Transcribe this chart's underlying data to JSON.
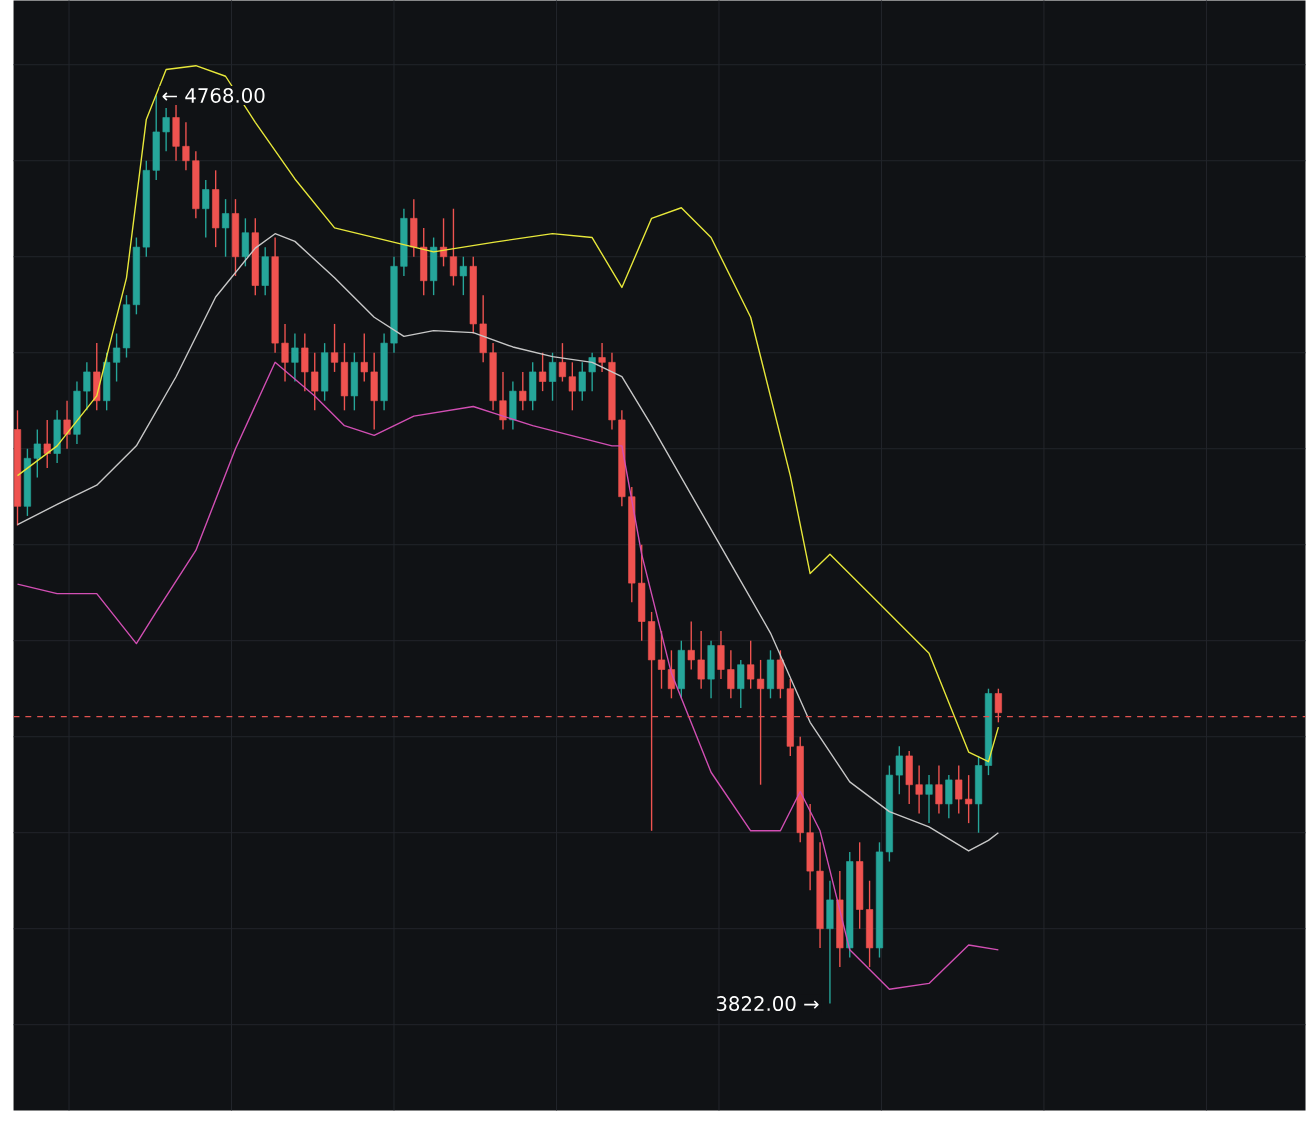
{
  "chart_data": {
    "type": "candlestick",
    "categories": [
      null,
      null,
      null,
      null,
      null,
      null,
      null,
      null,
      null,
      null,
      null,
      null,
      null,
      null,
      null,
      null,
      null,
      null,
      null,
      null,
      null,
      null,
      null,
      null,
      null,
      null,
      null,
      null,
      null,
      null,
      null,
      null,
      null,
      null,
      null,
      null,
      null,
      null,
      null,
      null,
      null,
      null,
      null,
      null,
      null,
      null,
      null,
      null,
      null,
      null,
      null,
      null,
      null,
      null,
      null,
      null,
      null,
      null,
      null,
      null,
      null,
      null,
      null,
      null,
      null,
      null,
      null,
      null,
      null,
      null,
      null,
      null,
      null,
      null,
      null,
      null,
      null,
      null,
      null,
      null,
      null,
      null,
      null,
      null,
      null,
      null,
      null,
      null,
      null,
      null,
      null,
      null,
      null,
      null,
      null,
      null,
      null,
      null,
      null,
      null
    ],
    "ohlc": [
      [
        4420,
        4440,
        4320,
        4340
      ],
      [
        4340,
        4400,
        4330,
        4390
      ],
      [
        4390,
        4420,
        4370,
        4405
      ],
      [
        4405,
        4430,
        4380,
        4395
      ],
      [
        4395,
        4440,
        4385,
        4430
      ],
      [
        4430,
        4450,
        4400,
        4415
      ],
      [
        4415,
        4470,
        4405,
        4460
      ],
      [
        4460,
        4490,
        4440,
        4480
      ],
      [
        4480,
        4510,
        4440,
        4450
      ],
      [
        4450,
        4500,
        4440,
        4490
      ],
      [
        4490,
        4520,
        4470,
        4505
      ],
      [
        4505,
        4560,
        4495,
        4550
      ],
      [
        4550,
        4620,
        4540,
        4610
      ],
      [
        4610,
        4700,
        4600,
        4690
      ],
      [
        4690,
        4768,
        4680,
        4730
      ],
      [
        4730,
        4755,
        4710,
        4745
      ],
      [
        4745,
        4760,
        4700,
        4715
      ],
      [
        4715,
        4740,
        4690,
        4700
      ],
      [
        4700,
        4710,
        4640,
        4650
      ],
      [
        4650,
        4680,
        4620,
        4670
      ],
      [
        4670,
        4690,
        4610,
        4630
      ],
      [
        4630,
        4660,
        4600,
        4645
      ],
      [
        4645,
        4660,
        4580,
        4600
      ],
      [
        4600,
        4640,
        4590,
        4625
      ],
      [
        4625,
        4640,
        4560,
        4570
      ],
      [
        4570,
        4610,
        4560,
        4600
      ],
      [
        4600,
        4620,
        4500,
        4510
      ],
      [
        4510,
        4530,
        4470,
        4490
      ],
      [
        4490,
        4520,
        4470,
        4505
      ],
      [
        4505,
        4520,
        4460,
        4480
      ],
      [
        4480,
        4500,
        4440,
        4460
      ],
      [
        4460,
        4510,
        4450,
        4500
      ],
      [
        4500,
        4530,
        4480,
        4490
      ],
      [
        4490,
        4510,
        4440,
        4455
      ],
      [
        4455,
        4500,
        4440,
        4490
      ],
      [
        4490,
        4520,
        4470,
        4480
      ],
      [
        4480,
        4500,
        4420,
        4450
      ],
      [
        4450,
        4520,
        4440,
        4510
      ],
      [
        4510,
        4600,
        4500,
        4590
      ],
      [
        4590,
        4650,
        4580,
        4640
      ],
      [
        4640,
        4660,
        4600,
        4610
      ],
      [
        4610,
        4630,
        4560,
        4575
      ],
      [
        4575,
        4620,
        4560,
        4610
      ],
      [
        4610,
        4640,
        4590,
        4600
      ],
      [
        4600,
        4650,
        4570,
        4580
      ],
      [
        4580,
        4600,
        4560,
        4590
      ],
      [
        4590,
        4600,
        4520,
        4530
      ],
      [
        4530,
        4560,
        4490,
        4500
      ],
      [
        4500,
        4510,
        4440,
        4450
      ],
      [
        4450,
        4480,
        4420,
        4430
      ],
      [
        4430,
        4470,
        4420,
        4460
      ],
      [
        4460,
        4480,
        4440,
        4450
      ],
      [
        4450,
        4490,
        4440,
        4480
      ],
      [
        4480,
        4500,
        4460,
        4470
      ],
      [
        4470,
        4500,
        4450,
        4490
      ],
      [
        4490,
        4510,
        4470,
        4475
      ],
      [
        4475,
        4490,
        4440,
        4460
      ],
      [
        4460,
        4490,
        4450,
        4480
      ],
      [
        4480,
        4500,
        4460,
        4495
      ],
      [
        4495,
        4510,
        4480,
        4490
      ],
      [
        4490,
        4500,
        4420,
        4430
      ],
      [
        4430,
        4440,
        4340,
        4350
      ],
      [
        4350,
        4360,
        4240,
        4260
      ],
      [
        4260,
        4300,
        4200,
        4220
      ],
      [
        4220,
        4230,
        4002,
        4180
      ],
      [
        4180,
        4210,
        4150,
        4170
      ],
      [
        4170,
        4190,
        4140,
        4150
      ],
      [
        4150,
        4200,
        4140,
        4190
      ],
      [
        4190,
        4220,
        4170,
        4180
      ],
      [
        4180,
        4210,
        4150,
        4160
      ],
      [
        4160,
        4200,
        4140,
        4195
      ],
      [
        4195,
        4210,
        4160,
        4170
      ],
      [
        4170,
        4190,
        4140,
        4150
      ],
      [
        4150,
        4180,
        4130,
        4175
      ],
      [
        4175,
        4200,
        4150,
        4160
      ],
      [
        4160,
        4180,
        4050,
        4150
      ],
      [
        4150,
        4190,
        4140,
        4180
      ],
      [
        4180,
        4190,
        4140,
        4150
      ],
      [
        4150,
        4160,
        4080,
        4090
      ],
      [
        4090,
        4100,
        3990,
        4000
      ],
      [
        4000,
        4030,
        3940,
        3960
      ],
      [
        3960,
        3990,
        3880,
        3900
      ],
      [
        3900,
        3950,
        3822,
        3930
      ],
      [
        3930,
        3960,
        3860,
        3880
      ],
      [
        3880,
        3980,
        3870,
        3970
      ],
      [
        3970,
        3990,
        3900,
        3920
      ],
      [
        3920,
        3950,
        3860,
        3880
      ],
      [
        3880,
        3990,
        3870,
        3980
      ],
      [
        3980,
        4070,
        3970,
        4060
      ],
      [
        4060,
        4090,
        4040,
        4080
      ],
      [
        4080,
        4085,
        4030,
        4050
      ],
      [
        4050,
        4070,
        4020,
        4040
      ],
      [
        4040,
        4060,
        4010,
        4050
      ],
      [
        4050,
        4070,
        4020,
        4030
      ],
      [
        4030,
        4060,
        4015,
        4055
      ],
      [
        4055,
        4070,
        4020,
        4035
      ],
      [
        4035,
        4060,
        4010,
        4030
      ],
      [
        4030,
        4080,
        4000,
        4070
      ],
      [
        4070,
        4150,
        4060,
        4145
      ],
      [
        4145,
        4150,
        4115,
        4125
      ]
    ],
    "colors": [
      "#ef5350",
      "#26a69a",
      "#26a69a",
      "#ef5350",
      "#26a69a",
      "#ef5350",
      "#26a69a",
      "#26a69a",
      "#ef5350",
      "#26a69a",
      "#26a69a",
      "#26a69a",
      "#26a69a",
      "#26a69a",
      "#26a69a",
      "#26a69a",
      "#ef5350",
      "#ef5350",
      "#ef5350",
      "#26a69a",
      "#ef5350",
      "#26a69a",
      "#ef5350",
      "#26a69a",
      "#ef5350",
      "#26a69a",
      "#ef5350",
      "#ef5350",
      "#26a69a",
      "#ef5350",
      "#ef5350",
      "#26a69a",
      "#ef5350",
      "#ef5350",
      "#26a69a",
      "#ef5350",
      "#ef5350",
      "#26a69a",
      "#26a69a",
      "#26a69a",
      "#ef5350",
      "#ef5350",
      "#26a69a",
      "#ef5350",
      "#ef5350",
      "#26a69a",
      "#ef5350",
      "#ef5350",
      "#ef5350",
      "#ef5350",
      "#26a69a",
      "#ef5350",
      "#26a69a",
      "#ef5350",
      "#26a69a",
      "#ef5350",
      "#ef5350",
      "#26a69a",
      "#26a69a",
      "#ef5350",
      "#ef5350",
      "#ef5350",
      "#ef5350",
      "#ef5350",
      "#ef5350",
      "#ef5350",
      "#ef5350",
      "#26a69a",
      "#ef5350",
      "#ef5350",
      "#26a69a",
      "#ef5350",
      "#ef5350",
      "#26a69a",
      "#ef5350",
      "#ef5350",
      "#26a69a",
      "#ef5350",
      "#ef5350",
      "#ef5350",
      "#ef5350",
      "#ef5350",
      "#26a69a",
      "#ef5350",
      "#26a69a",
      "#ef5350",
      "#ef5350",
      "#26a69a",
      "#26a69a",
      "#26a69a",
      "#ef5350",
      "#ef5350",
      "#26a69a",
      "#ef5350",
      "#26a69a",
      "#ef5350",
      "#ef5350",
      "#26a69a",
      "#26a69a",
      "#ef5350"
    ],
    "series": [
      {
        "type": "line",
        "color": "#e8e83a",
        "values": [
          4372,
          null,
          null,
          null,
          4403,
          null,
          null,
          null,
          4455,
          null,
          null,
          4578,
          null,
          4743,
          null,
          4795,
          null,
          null,
          4799,
          null,
          null,
          4788,
          null,
          null,
          4740,
          null,
          null,
          null,
          4681,
          null,
          null,
          null,
          4630,
          null,
          null,
          null,
          null,
          null,
          4615,
          null,
          null,
          null,
          4605,
          null,
          null,
          null,
          null,
          null,
          4615,
          null,
          null,
          null,
          null,
          null,
          4624,
          null,
          null,
          null,
          4620,
          null,
          null,
          4568,
          null,
          null,
          4640,
          null,
          null,
          4651,
          null,
          null,
          4620,
          null,
          null,
          null,
          4537,
          null,
          null,
          null,
          4372,
          null,
          4270,
          null,
          4290,
          null,
          null,
          null,
          4249,
          null,
          null,
          null,
          null,
          null,
          4187,
          null,
          null,
          null,
          4084,
          null,
          4074,
          4110
        ]
      },
      {
        "type": "line",
        "color": "#c8c8c8",
        "values": [
          4321,
          null,
          null,
          null,
          4342,
          null,
          null,
          null,
          4362,
          null,
          null,
          null,
          4403,
          null,
          null,
          null,
          4475,
          null,
          null,
          null,
          4558,
          null,
          null,
          null,
          4609,
          null,
          4624,
          null,
          4616,
          null,
          null,
          null,
          4578,
          null,
          null,
          null,
          4537,
          null,
          null,
          4517,
          null,
          null,
          4523,
          null,
          null,
          null,
          4521,
          null,
          null,
          null,
          4506,
          null,
          null,
          null,
          4496,
          null,
          null,
          null,
          4490,
          null,
          null,
          4475,
          null,
          null,
          4424,
          null,
          null,
          null,
          4352,
          null,
          null,
          null,
          4280,
          null,
          null,
          null,
          4208,
          null,
          null,
          null,
          4115,
          null,
          null,
          null,
          4053,
          null,
          null,
          null,
          4022,
          null,
          null,
          null,
          4006,
          null,
          null,
          null,
          3981,
          null,
          3992,
          4000
        ]
      },
      {
        "type": "line",
        "color": "#d24fb4",
        "values": [
          4259,
          null,
          null,
          null,
          4249,
          null,
          null,
          null,
          4249,
          null,
          null,
          null,
          4197,
          null,
          4230,
          null,
          null,
          null,
          4294,
          null,
          null,
          null,
          4400,
          null,
          null,
          null,
          4490,
          null,
          null,
          null,
          4455,
          null,
          null,
          4424,
          null,
          null,
          4414,
          null,
          null,
          null,
          4434,
          null,
          null,
          null,
          null,
          null,
          4444,
          null,
          null,
          null,
          null,
          null,
          4424,
          null,
          null,
          null,
          null,
          null,
          null,
          null,
          4403,
          4403,
          null,
          4290,
          null,
          null,
          4166,
          null,
          null,
          null,
          4063,
          null,
          null,
          null,
          4002,
          null,
          null,
          4002,
          null,
          4043,
          null,
          4002,
          null,
          null,
          3878,
          null,
          null,
          null,
          3837,
          null,
          null,
          null,
          3843,
          null,
          null,
          null,
          3883,
          null,
          null,
          3878
        ]
      }
    ],
    "ref_lines": [
      {
        "axis": "y",
        "value": 4121,
        "color": "#e0524f",
        "line_style": "dashed"
      }
    ],
    "annotations": [
      "← 4768.00",
      "3822.00 →"
    ],
    "grid": true,
    "tick_labels": false
  }
}
